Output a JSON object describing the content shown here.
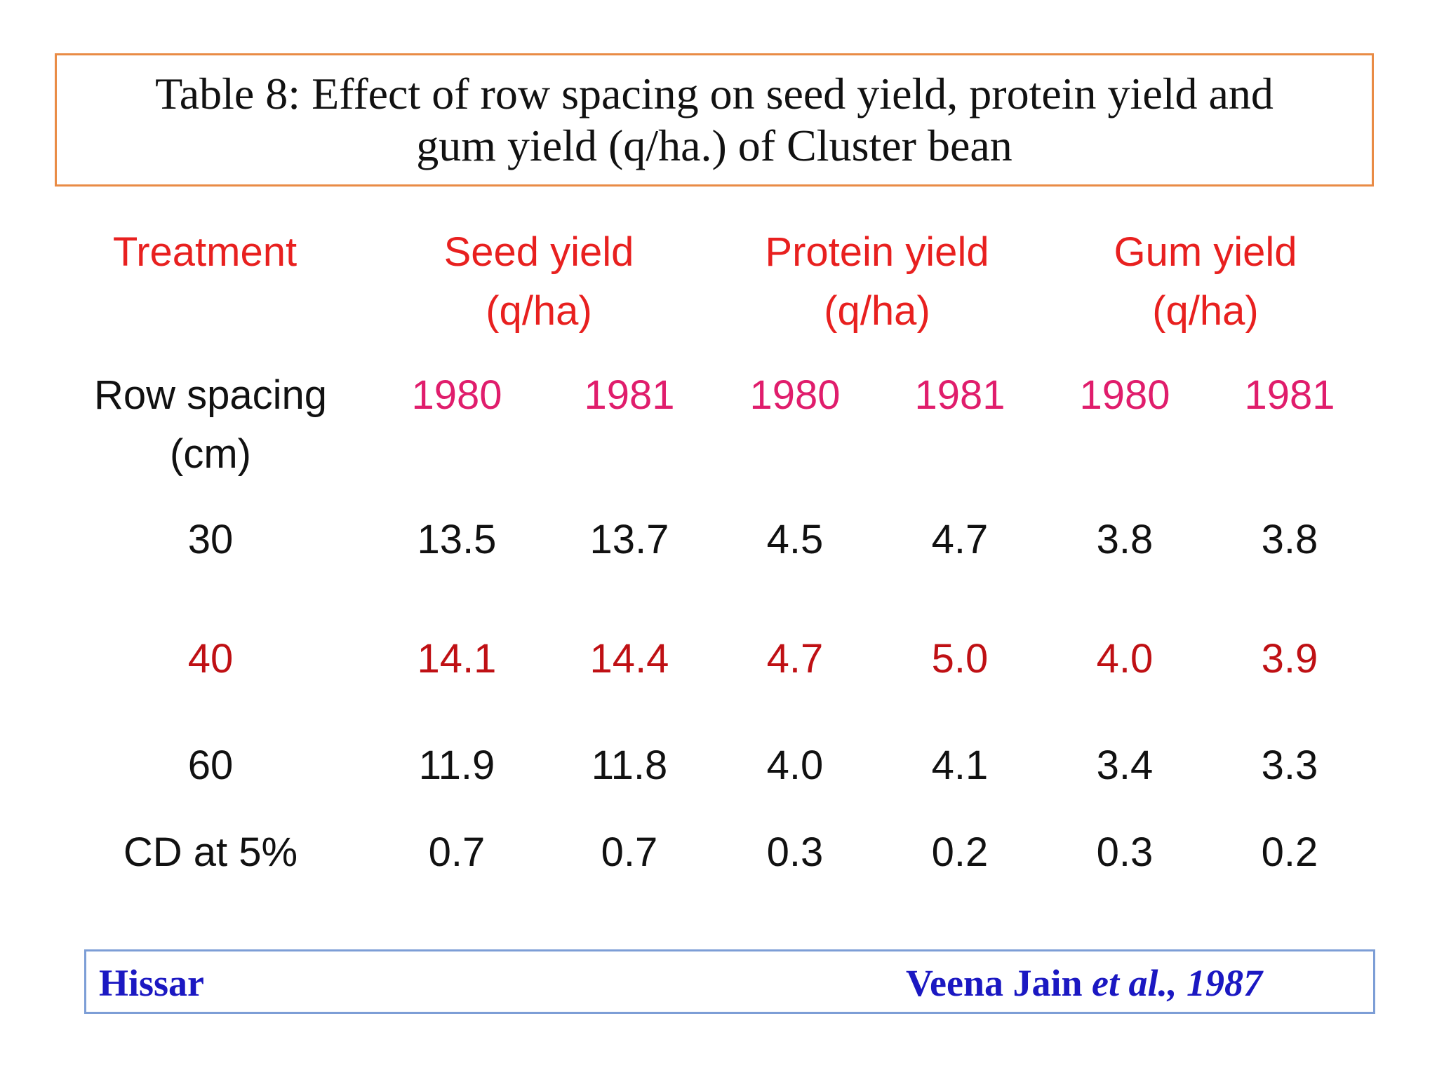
{
  "title": "Table 8: Effect of row spacing on seed yield, protein yield and\ngum yield (q/ha.) of Cluster bean",
  "headers": {
    "treatment": "Treatment",
    "seed": "Seed yield\n(q/ha)",
    "protein": "Protein yield\n(q/ha)",
    "gum": "Gum yield\n(q/ha)"
  },
  "subheader": {
    "label": "Row spacing\n(cm)",
    "years": [
      "1980",
      "1981",
      "1980",
      "1981",
      "1980",
      "1981"
    ]
  },
  "rows": [
    {
      "label": "30",
      "values": [
        "13.5",
        "13.7",
        "4.5",
        "4.7",
        "3.8",
        "3.8"
      ],
      "highlight": false
    },
    {
      "label": "40",
      "values": [
        "14.1",
        "14.4",
        "4.7",
        "5.0",
        "4.0",
        "3.9"
      ],
      "highlight": true
    },
    {
      "label": "60",
      "values": [
        "11.9",
        "11.8",
        "4.0",
        "4.1",
        "3.4",
        "3.3"
      ],
      "highlight": false
    },
    {
      "label": "CD at 5%",
      "values": [
        "0.7",
        "0.7",
        "0.3",
        "0.2",
        "0.3",
        "0.2"
      ],
      "highlight": false
    }
  ],
  "footer": {
    "location": "Hissar",
    "author": "Veena Jain",
    "etal": "et al.,",
    "year": "1987"
  },
  "colors": {
    "header": "#e8201f",
    "year": "#e01d6c",
    "highlight_row": "#bf1014",
    "text": "#111111",
    "footer": "#1b18c2",
    "title_border": "#e98b45",
    "footer_border": "#7d9ed6"
  }
}
